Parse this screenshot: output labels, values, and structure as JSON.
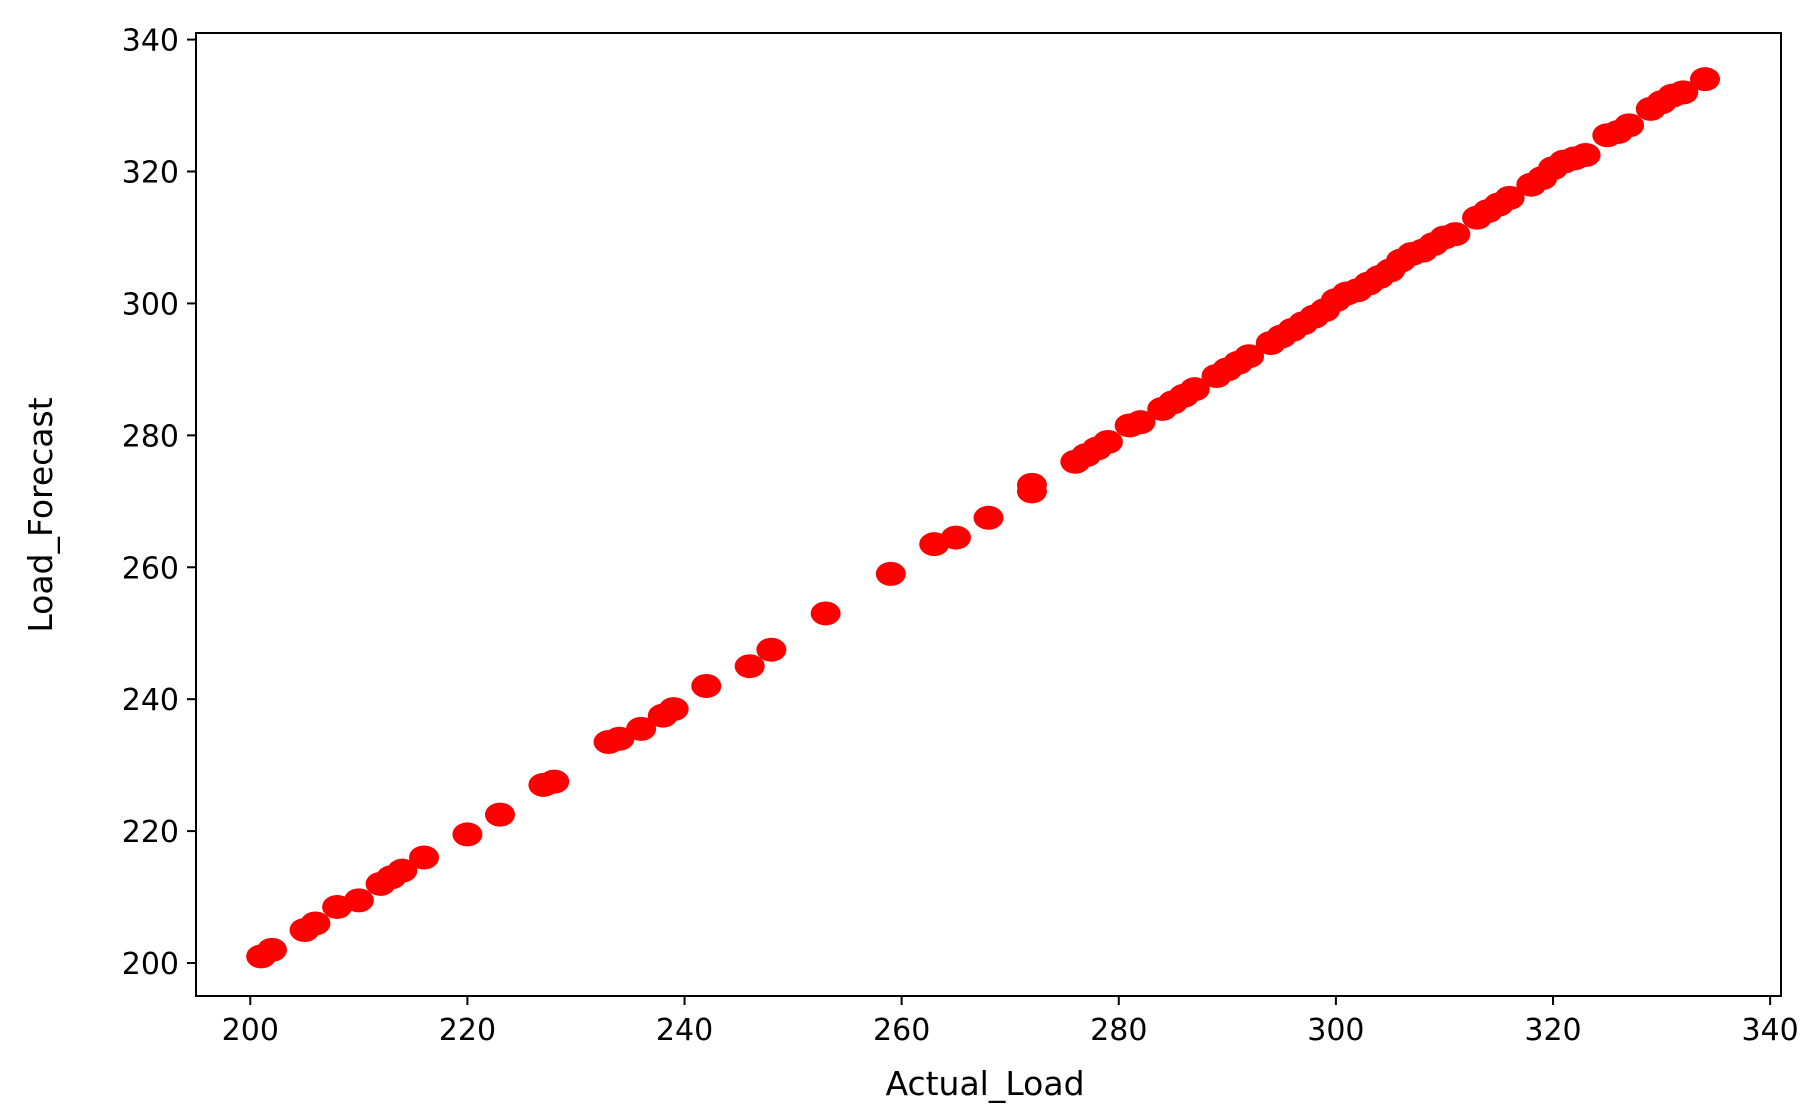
{
  "chart_data": {
    "type": "scatter",
    "title": "",
    "xlabel": "Actual_Load",
    "ylabel": "Load_Forecast",
    "xlim": [
      195,
      341
    ],
    "ylim": [
      195,
      341
    ],
    "xticks": [
      200,
      220,
      240,
      260,
      280,
      300,
      320,
      340
    ],
    "yticks": [
      200,
      220,
      240,
      260,
      280,
      300,
      320,
      340
    ],
    "grid": false,
    "legend": "none",
    "marker_color": "#ff0000",
    "series": [
      {
        "x": [
          201,
          202,
          205,
          206,
          208,
          210,
          212,
          213,
          214,
          216,
          220,
          223,
          227,
          228,
          233,
          234,
          236,
          238,
          239,
          242,
          246,
          248,
          253,
          259,
          263,
          265,
          268,
          272,
          272,
          276,
          277,
          278,
          279,
          281,
          282,
          284,
          285,
          286,
          287,
          289,
          290,
          291,
          292,
          294,
          295,
          296,
          297,
          298,
          299,
          300,
          301,
          302,
          303,
          304,
          305,
          306,
          307,
          308,
          309,
          310,
          311,
          313,
          314,
          315,
          316,
          318,
          319,
          320,
          321,
          322,
          323,
          325,
          326,
          327,
          329,
          330,
          331,
          332,
          334
        ],
        "y": [
          201,
          202,
          205,
          206,
          208.5,
          209.5,
          212,
          213,
          214,
          216,
          219.5,
          222.5,
          227,
          227.5,
          233.5,
          234,
          235.5,
          237.5,
          238.5,
          242,
          245,
          247.5,
          253,
          259,
          263.5,
          264.5,
          267.5,
          271.5,
          272.5,
          276,
          277,
          278,
          279,
          281.5,
          282,
          284,
          285,
          286,
          287,
          289,
          290,
          291,
          292,
          294,
          295,
          296,
          297,
          298,
          299,
          300.5,
          301.5,
          302,
          303,
          304,
          305,
          306.5,
          307.5,
          308,
          309,
          310,
          310.5,
          313,
          314,
          315,
          316,
          318,
          319,
          320.5,
          321.5,
          322,
          322.5,
          325.5,
          326,
          327,
          329.5,
          330.5,
          331.5,
          332,
          334
        ]
      }
    ]
  }
}
